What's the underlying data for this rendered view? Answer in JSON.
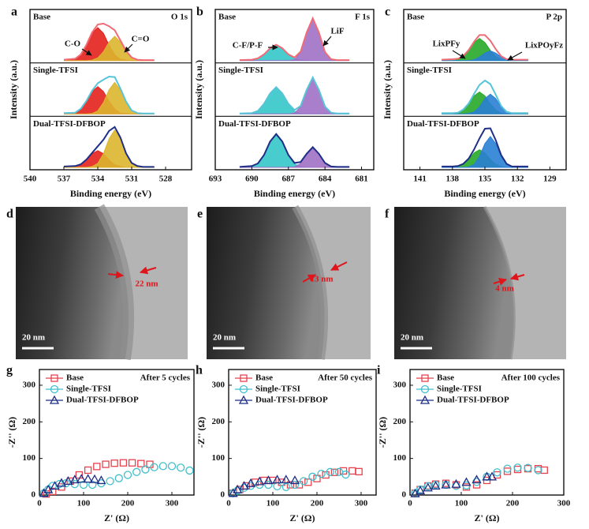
{
  "chart_data": [
    {
      "type": "line",
      "panel": "a",
      "element_label": "O 1s",
      "xlabel": "Binding energy (eV)",
      "ylabel": "Intensity (a.u.)",
      "x": [
        537,
        536,
        535.5,
        535,
        534.5,
        534,
        533.5,
        533,
        532.5,
        532,
        531.5,
        531,
        530.5,
        530,
        529
      ],
      "xlim": [
        540,
        525.7
      ],
      "xticks": [
        540,
        537,
        534,
        531,
        528
      ],
      "ylim": [
        0,
        1
      ],
      "components": [
        {
          "name": "C-O",
          "color": "#e3211c"
        },
        {
          "name": "C=O",
          "color": "#dcb52e"
        }
      ],
      "subplots": [
        {
          "label": "Base",
          "color": "#f06b76",
          "envelope": [
            0.02,
            0.04,
            0.14,
            0.36,
            0.64,
            0.82,
            0.84,
            0.78,
            0.69,
            0.46,
            0.22,
            0.07,
            0.02,
            0.01,
            0.01
          ],
          "components": [
            [
              0,
              0.03,
              0.13,
              0.35,
              0.62,
              0.75,
              0.62,
              0.35,
              0.13,
              0.03,
              0.01,
              0,
              0,
              0,
              0
            ],
            [
              0,
              0,
              0,
              0,
              0.01,
              0.06,
              0.2,
              0.42,
              0.55,
              0.42,
              0.2,
              0.06,
              0.01,
              0,
              0
            ]
          ]
        },
        {
          "label": "Single-TFSI",
          "color": "#58c4d9",
          "envelope": [
            0.02,
            0.03,
            0.12,
            0.3,
            0.53,
            0.7,
            0.78,
            0.85,
            0.84,
            0.58,
            0.28,
            0.08,
            0.02,
            0.01,
            0.01
          ],
          "components": [
            [
              0,
              0.02,
              0.11,
              0.29,
              0.51,
              0.62,
              0.51,
              0.29,
              0.11,
              0.02,
              0.01,
              0,
              0,
              0,
              0
            ],
            [
              0,
              0,
              0,
              0,
              0.01,
              0.07,
              0.26,
              0.55,
              0.72,
              0.55,
              0.26,
              0.07,
              0.01,
              0,
              0
            ]
          ]
        },
        {
          "label": "Dual-TFSI-DFBOP",
          "color": "#1f2f86",
          "envelope": [
            0.02,
            0.03,
            0.07,
            0.18,
            0.33,
            0.48,
            0.63,
            0.83,
            0.92,
            0.68,
            0.32,
            0.1,
            0.03,
            0.01,
            0.01
          ],
          "components": [
            [
              0,
              0.02,
              0.06,
              0.17,
              0.31,
              0.38,
              0.31,
              0.17,
              0.06,
              0.02,
              0,
              0,
              0,
              0,
              0
            ],
            [
              0,
              0,
              0,
              0,
              0.02,
              0.09,
              0.31,
              0.65,
              0.85,
              0.65,
              0.31,
              0.09,
              0.02,
              0,
              0
            ]
          ]
        }
      ]
    },
    {
      "type": "line",
      "panel": "b",
      "element_label": "F 1s",
      "xlabel": "Binding energy (eV)",
      "ylabel": "Intensity (a.u.)",
      "x": [
        691,
        690,
        689.5,
        689,
        688.5,
        688,
        687.5,
        687,
        686.5,
        686,
        685.5,
        685,
        684.5,
        684,
        683.5,
        683,
        682
      ],
      "xlim": [
        693,
        680
      ],
      "xticks": [
        693,
        690,
        687,
        684,
        681
      ],
      "ylim": [
        0,
        1
      ],
      "components": [
        {
          "name": "C-F/P-F",
          "color": "#35c7c9"
        },
        {
          "name": "LiF",
          "color": "#a070c4"
        }
      ],
      "subplots": [
        {
          "label": "Base",
          "color": "#f06b76",
          "envelope": [
            0.01,
            0.02,
            0.05,
            0.14,
            0.28,
            0.36,
            0.28,
            0.14,
            0.07,
            0.2,
            0.64,
            0.96,
            0.64,
            0.19,
            0.03,
            0.01,
            0.01
          ],
          "components": [
            [
              0,
              0.01,
              0.04,
              0.13,
              0.27,
              0.35,
              0.27,
              0.13,
              0.04,
              0.01,
              0,
              0,
              0,
              0,
              0,
              0,
              0
            ],
            [
              0,
              0,
              0,
              0,
              0,
              0,
              0,
              0,
              0.02,
              0.18,
              0.63,
              0.95,
              0.63,
              0.18,
              0.02,
              0,
              0
            ]
          ]
        },
        {
          "label": "Single-TFSI",
          "color": "#58c4d9",
          "envelope": [
            0.01,
            0.02,
            0.07,
            0.23,
            0.47,
            0.61,
            0.47,
            0.23,
            0.09,
            0.18,
            0.55,
            0.83,
            0.55,
            0.17,
            0.03,
            0.01,
            0.01
          ],
          "components": [
            [
              0,
              0.01,
              0.06,
              0.22,
              0.46,
              0.6,
              0.46,
              0.22,
              0.06,
              0.01,
              0,
              0,
              0,
              0,
              0,
              0,
              0
            ],
            [
              0,
              0,
              0,
              0,
              0,
              0,
              0,
              0,
              0.02,
              0.16,
              0.54,
              0.82,
              0.54,
              0.16,
              0.02,
              0,
              0
            ]
          ]
        },
        {
          "label": "Dual-TFSI-DFBOP",
          "color": "#1f2f86",
          "envelope": [
            0.01,
            0.03,
            0.09,
            0.28,
            0.59,
            0.76,
            0.59,
            0.28,
            0.1,
            0.12,
            0.31,
            0.46,
            0.31,
            0.1,
            0.02,
            0.01,
            0.01
          ],
          "components": [
            [
              0,
              0.02,
              0.08,
              0.27,
              0.58,
              0.75,
              0.58,
              0.27,
              0.08,
              0.02,
              0,
              0,
              0,
              0,
              0,
              0,
              0
            ],
            [
              0,
              0,
              0,
              0,
              0,
              0,
              0,
              0,
              0.01,
              0.09,
              0.3,
              0.45,
              0.3,
              0.09,
              0.01,
              0,
              0
            ]
          ]
        }
      ]
    },
    {
      "type": "line",
      "panel": "c",
      "element_label": "P 2p",
      "xlabel": "Binding energy (eV)",
      "ylabel": "Intensity (a.u.)",
      "x": [
        139,
        138,
        137.5,
        137,
        136.5,
        136,
        135.5,
        135,
        134.5,
        134,
        133.5,
        133,
        132.5,
        132,
        131
      ],
      "xlim": [
        142.5,
        127.5
      ],
      "xticks": [
        141,
        138,
        135,
        132,
        129
      ],
      "ylim": [
        0,
        1
      ],
      "components": [
        {
          "name": "LixPFy",
          "color": "#28a828"
        },
        {
          "name": "LixPOyFz",
          "color": "#2a7fd4"
        }
      ],
      "subplots": [
        {
          "label": "Base",
          "color": "#f06b76",
          "envelope": [
            0.02,
            0.03,
            0.04,
            0.1,
            0.24,
            0.43,
            0.58,
            0.58,
            0.45,
            0.26,
            0.1,
            0.03,
            0.02,
            0.02,
            0.02
          ],
          "components": [
            [
              0,
              0,
              0.02,
              0.09,
              0.23,
              0.41,
              0.5,
              0.41,
              0.23,
              0.09,
              0.02,
              0,
              0,
              0,
              0
            ],
            [
              0,
              0,
              0,
              0,
              0,
              0.02,
              0.08,
              0.17,
              0.22,
              0.17,
              0.08,
              0.02,
              0,
              0,
              0
            ]
          ]
        },
        {
          "label": "Single-TFSI",
          "color": "#58c4d9",
          "envelope": [
            0.02,
            0.02,
            0.03,
            0.1,
            0.24,
            0.46,
            0.66,
            0.76,
            0.68,
            0.44,
            0.18,
            0.05,
            0.02,
            0.02,
            0.02
          ],
          "components": [
            [
              0,
              0,
              0.02,
              0.09,
              0.23,
              0.41,
              0.5,
              0.41,
              0.23,
              0.09,
              0.02,
              0,
              0,
              0,
              0
            ],
            [
              0,
              0,
              0,
              0,
              0.01,
              0.05,
              0.16,
              0.35,
              0.45,
              0.35,
              0.16,
              0.05,
              0.01,
              0,
              0
            ]
          ]
        },
        {
          "label": "Dual-TFSI-DFBOP",
          "color": "#1f2f86",
          "envelope": [
            0.02,
            0.02,
            0.03,
            0.08,
            0.2,
            0.41,
            0.66,
            0.88,
            0.89,
            0.62,
            0.28,
            0.08,
            0.02,
            0.02,
            0.02
          ],
          "components": [
            [
              0,
              0,
              0.02,
              0.07,
              0.18,
              0.33,
              0.4,
              0.33,
              0.18,
              0.07,
              0.02,
              0,
              0,
              0,
              0
            ],
            [
              0,
              0,
              0,
              0,
              0.01,
              0.07,
              0.25,
              0.54,
              0.7,
              0.54,
              0.25,
              0.07,
              0.01,
              0,
              0
            ]
          ]
        }
      ]
    },
    {
      "type": "scatter",
      "panel": "g",
      "annotation": "After 5 cycles",
      "xlabel": "Z' (Ω)",
      "ylabel": "-Z'' (Ω)",
      "xlim": [
        0,
        350
      ],
      "xticks": [
        0,
        100,
        200,
        300
      ],
      "ylim": [
        0,
        343
      ],
      "yticks": [
        0,
        100,
        200,
        300
      ],
      "series": [
        {
          "name": "Base",
          "color": "#e8414e",
          "marker": "square",
          "x": [
            15,
            30,
            50,
            70,
            90,
            110,
            130,
            150,
            170,
            190,
            210,
            230,
            250
          ],
          "values": [
            3,
            10,
            22,
            38,
            55,
            68,
            78,
            84,
            87,
            88,
            88,
            86,
            84
          ]
        },
        {
          "name": "Single-TFSI",
          "color": "#3fbfcc",
          "marker": "circle",
          "x": [
            10,
            20,
            30,
            45,
            60,
            80,
            100,
            120,
            140,
            160,
            180,
            200,
            220,
            240,
            260,
            280,
            300,
            320,
            340
          ],
          "values": [
            5,
            15,
            25,
            30,
            32,
            30,
            28,
            28,
            32,
            38,
            46,
            55,
            63,
            70,
            76,
            79,
            79,
            75,
            67
          ]
        },
        {
          "name": "Dual-TFSI-DFBOP",
          "color": "#1f2f86",
          "marker": "triangle",
          "x": [
            10,
            20,
            35,
            50,
            65,
            80,
            95,
            110,
            125,
            140
          ],
          "values": [
            5,
            15,
            25,
            33,
            38,
            42,
            44,
            44,
            43,
            40
          ]
        }
      ]
    },
    {
      "type": "scatter",
      "panel": "h",
      "annotation": "After 50 cycles",
      "xlabel": "Z' (Ω)",
      "ylabel": "-Z'' (Ω)",
      "xlim": [
        0,
        334
      ],
      "xticks": [
        0,
        100,
        200,
        300
      ],
      "ylim": [
        0,
        343
      ],
      "yticks": [
        0,
        100,
        200,
        300
      ],
      "series": [
        {
          "name": "Base",
          "color": "#e8414e",
          "marker": "square",
          "x": [
            10,
            25,
            40,
            60,
            80,
            100,
            120,
            140,
            160,
            180,
            200,
            220,
            240,
            260,
            280,
            295
          ],
          "values": [
            5,
            15,
            25,
            35,
            40,
            40,
            35,
            28,
            28,
            35,
            45,
            55,
            62,
            66,
            66,
            64
          ]
        },
        {
          "name": "Single-TFSI",
          "color": "#3fbfcc",
          "marker": "circle",
          "x": [
            10,
            20,
            35,
            50,
            70,
            90,
            110,
            130,
            150,
            170,
            190,
            210,
            230,
            250,
            265
          ],
          "values": [
            5,
            12,
            20,
            25,
            28,
            28,
            24,
            22,
            28,
            38,
            50,
            58,
            63,
            63,
            56
          ]
        },
        {
          "name": "Dual-TFSI-DFBOP",
          "color": "#1f2f86",
          "marker": "triangle",
          "x": [
            10,
            20,
            35,
            50,
            70,
            90,
            110,
            130,
            150
          ],
          "values": [
            5,
            15,
            25,
            32,
            37,
            40,
            42,
            42,
            40
          ]
        }
      ]
    },
    {
      "type": "scatter",
      "panel": "i",
      "annotation": "After 100 cycles",
      "xlabel": "Z' (Ω)",
      "ylabel": "-Z'' (Ω)",
      "xlim": [
        0,
        300
      ],
      "xticks": [
        0,
        100,
        200,
        300
      ],
      "ylim": [
        0,
        343
      ],
      "yticks": [
        0,
        100,
        200,
        300
      ],
      "series": [
        {
          "name": "Base",
          "color": "#e8414e",
          "marker": "square",
          "x": [
            10,
            20,
            35,
            50,
            70,
            90,
            110,
            130,
            150,
            170,
            190,
            210,
            230,
            250,
            262
          ],
          "values": [
            5,
            15,
            25,
            30,
            32,
            28,
            22,
            28,
            40,
            55,
            65,
            70,
            72,
            72,
            68
          ]
        },
        {
          "name": "Single-TFSI",
          "color": "#3fbfcc",
          "marker": "circle",
          "x": [
            10,
            20,
            35,
            50,
            70,
            90,
            110,
            130,
            150,
            170,
            190,
            210,
            230,
            250
          ],
          "values": [
            5,
            15,
            24,
            28,
            28,
            25,
            26,
            36,
            50,
            62,
            72,
            75,
            74,
            68
          ]
        },
        {
          "name": "Dual-TFSI-DFBOP",
          "color": "#1f2f86",
          "marker": "triangle",
          "x": [
            10,
            20,
            35,
            50,
            70,
            90,
            110,
            130,
            150,
            160
          ],
          "values": [
            4,
            12,
            20,
            25,
            28,
            30,
            35,
            42,
            50,
            50
          ]
        }
      ]
    }
  ],
  "images": [
    {
      "label": "d",
      "thickness": "22 nm",
      "scale_bar": "20 nm"
    },
    {
      "label": "e",
      "thickness": "13 nm",
      "scale_bar": "20 nm"
    },
    {
      "label": "f",
      "thickness": "4 nm",
      "scale_bar": "20 nm"
    }
  ]
}
